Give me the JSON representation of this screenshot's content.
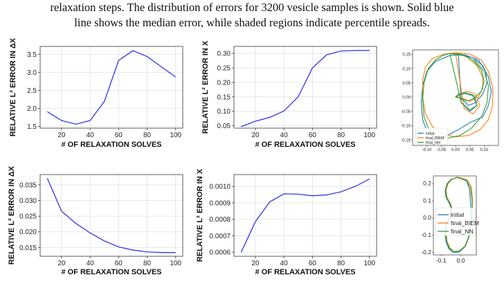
{
  "caption": {
    "lines": [
      "relaxation steps. The distribution of errors for 3200 vesicle samples is shown. Solid blue",
      "line shows the median error, while shaded regions indicate percentile spreads."
    ]
  },
  "colors": {
    "median": "#2525e6",
    "initial": "#1f77b4",
    "final_BIEM": "#ff7f0e",
    "final_NN": "#2ca02c"
  },
  "chart_data": [
    {
      "type": "line",
      "xlabel": "# OF RELAXATION SOLVES",
      "ylabel": "RELATIVE L² ERROR IN ΔX",
      "x": [
        10,
        20,
        30,
        40,
        50,
        60,
        70,
        80,
        100
      ],
      "values": [
        1.91,
        1.66,
        1.56,
        1.66,
        2.19,
        3.33,
        3.6,
        3.44,
        2.87
      ],
      "xlim": [
        5,
        105
      ],
      "ylim": [
        1.45,
        3.72
      ],
      "xticks": [
        "20",
        "40",
        "60",
        "80",
        "100"
      ],
      "xtick_vals": [
        20,
        40,
        60,
        80,
        100
      ],
      "yticks": [
        "1.5",
        "2.0",
        "2.5",
        "3.0",
        "3.5"
      ],
      "ytick_vals": [
        1.5,
        2.0,
        2.5,
        3.0,
        3.5
      ]
    },
    {
      "type": "line",
      "xlabel": "# OF RELAXATION SOLVES",
      "ylabel": "RELATIVE L² ERROR IN X",
      "x": [
        10,
        20,
        30,
        40,
        50,
        60,
        70,
        80,
        90,
        100
      ],
      "values": [
        0.047,
        0.066,
        0.079,
        0.101,
        0.15,
        0.25,
        0.295,
        0.308,
        0.31,
        0.31
      ],
      "xlim": [
        5,
        105
      ],
      "ylim": [
        0.042,
        0.324
      ],
      "xticks": [
        "20",
        "40",
        "60",
        "80",
        "100"
      ],
      "xtick_vals": [
        20,
        40,
        60,
        80,
        100
      ],
      "yticks": [
        "0.05",
        "0.10",
        "0.15",
        "0.20",
        "0.25",
        "0.30"
      ],
      "ytick_vals": [
        0.05,
        0.1,
        0.15,
        0.2,
        0.25,
        0.3
      ]
    },
    {
      "type": "line",
      "xlabel": "# OF RELAXATION SOLVES",
      "ylabel": "RELATIVE L² ERROR IN ΔX",
      "x": [
        10,
        20,
        30,
        40,
        50,
        60,
        70,
        80,
        90,
        100
      ],
      "values": [
        0.0371,
        0.0266,
        0.0227,
        0.0197,
        0.0171,
        0.0152,
        0.0142,
        0.0136,
        0.0134,
        0.0134
      ],
      "xlim": [
        5,
        105
      ],
      "ylim": [
        0.0122,
        0.0383
      ],
      "xticks": [
        "20",
        "40",
        "60",
        "80",
        "100"
      ],
      "xtick_vals": [
        20,
        40,
        60,
        80,
        100
      ],
      "yticks": [
        "0.015",
        "0.020",
        "0.025",
        "0.030",
        "0.035"
      ],
      "ytick_vals": [
        0.015,
        0.02,
        0.025,
        0.03,
        0.035
      ]
    },
    {
      "type": "line",
      "xlabel": "# OF RELAXATION SOLVES",
      "ylabel": "RELATIVE L² ERROR IN X",
      "x": [
        10,
        20,
        30,
        40,
        50,
        60,
        70,
        80,
        90,
        100
      ],
      "values": [
        0.0006,
        0.000785,
        0.000905,
        0.000955,
        0.000953,
        0.000943,
        0.000948,
        0.000967,
        0.001,
        0.001045
      ],
      "xlim": [
        5,
        105
      ],
      "ylim": [
        0.000575,
        0.001072
      ],
      "xticks": [
        "20",
        "40",
        "60",
        "80",
        "100"
      ],
      "xtick_vals": [
        20,
        40,
        60,
        80,
        100
      ],
      "yticks": [
        "0.0006",
        "0.0007",
        "0.0008",
        "0.0009",
        "0.0010"
      ],
      "ytick_vals": [
        0.0006,
        0.0007,
        0.0008,
        0.0009,
        0.001
      ]
    },
    {
      "type": "line",
      "legend": [
        "initial",
        "final_BIEM",
        "final_NN"
      ],
      "legend_position": "lower-left",
      "xlim": [
        -0.15,
        0.15
      ],
      "ylim": [
        -0.17,
        0.165
      ],
      "xticks": [
        "-0.10",
        "-0.05",
        "0.00",
        "0.05",
        "0.10"
      ],
      "xtick_vals": [
        -0.1,
        -0.05,
        0.0,
        0.05,
        0.1
      ],
      "yticks": [
        "0.15",
        "0.10",
        "0.05",
        "0.00",
        "-0.05",
        "-0.10",
        "-0.15"
      ],
      "ytick_vals": [
        0.15,
        0.1,
        0.05,
        0.0,
        -0.05,
        -0.1,
        -0.15
      ],
      "series": [
        {
          "name": "initial",
          "x": [
            0.01,
            0.06,
            0.095,
            0.115,
            0.125,
            0.115,
            0.095,
            0.05,
            0.01,
            -0.04,
            -0.075,
            -0.1,
            -0.115,
            -0.12,
            -0.115,
            -0.1,
            -0.07,
            -0.02,
            0.03,
            0.08,
            0.105,
            0.11,
            0.095,
            0.07,
            0.045,
            0.02,
            0.0,
            0.01,
            0.03,
            0.06,
            0.075,
            0.05,
            0.02,
            0.01
          ],
          "y": [
            0.148,
            0.138,
            0.11,
            0.07,
            0.02,
            -0.03,
            -0.07,
            -0.09,
            -0.115,
            -0.14,
            -0.14,
            -0.12,
            -0.08,
            -0.02,
            0.04,
            0.09,
            0.125,
            0.145,
            0.148,
            0.13,
            0.09,
            0.05,
            0.01,
            -0.02,
            -0.03,
            -0.005,
            0.0,
            0.005,
            0.012,
            0.005,
            -0.03,
            -0.05,
            -0.02,
            0.148
          ]
        },
        {
          "name": "final_BIEM",
          "x": [
            0.0,
            0.05,
            0.09,
            0.115,
            0.13,
            0.13,
            0.115,
            0.085,
            0.045,
            0.0,
            -0.045,
            -0.08,
            -0.105,
            -0.115,
            -0.115,
            -0.105,
            -0.08,
            -0.04,
            0.0,
            0.04,
            0.075,
            0.095,
            0.095,
            0.08,
            0.05,
            0.025,
            0.005,
            0.015,
            0.04,
            0.07,
            0.085,
            0.06,
            0.03,
            0.0
          ],
          "y": [
            0.155,
            0.15,
            0.13,
            0.09,
            0.035,
            -0.03,
            -0.08,
            -0.115,
            -0.135,
            -0.14,
            -0.13,
            -0.105,
            -0.06,
            0.0,
            0.06,
            0.105,
            0.135,
            0.15,
            0.155,
            0.14,
            0.11,
            0.07,
            0.03,
            0.0,
            -0.015,
            -0.005,
            0.0,
            0.01,
            0.02,
            0.01,
            -0.03,
            -0.06,
            -0.04,
            0.155
          ]
        },
        {
          "name": "final_NN",
          "x": [
            -0.02,
            0.03,
            0.07,
            0.1,
            0.115,
            0.11,
            0.09,
            0.055,
            0.015,
            -0.03,
            -0.07,
            -0.095,
            -0.11,
            -0.115,
            -0.11,
            -0.095,
            -0.07,
            -0.045,
            -0.02,
            0.02,
            0.06,
            0.09,
            0.1,
            0.09,
            0.065,
            0.04,
            0.02,
            0.0,
            0.01,
            0.035,
            0.065,
            0.075,
            0.05,
            0.02,
            -0.02
          ],
          "y": [
            0.152,
            0.145,
            0.125,
            0.09,
            0.04,
            -0.02,
            -0.07,
            -0.11,
            -0.135,
            -0.145,
            -0.135,
            -0.11,
            -0.07,
            -0.01,
            0.05,
            0.1,
            0.13,
            0.145,
            0.152,
            0.15,
            0.13,
            0.095,
            0.055,
            0.02,
            -0.005,
            -0.015,
            -0.005,
            0.0,
            0.01,
            0.015,
            0.005,
            -0.03,
            -0.045,
            -0.02,
            0.152
          ]
        }
      ]
    },
    {
      "type": "line",
      "legend": [
        "initial",
        "final_BIEM",
        "final_NN"
      ],
      "legend_position": "center",
      "xlim": [
        -0.14,
        0.08
      ],
      "ylim": [
        -0.215,
        0.245
      ],
      "xticks": [
        "-0.1",
        "0.0"
      ],
      "xtick_vals": [
        -0.1,
        0.0
      ],
      "yticks": [
        "0.2",
        "0.1",
        "0.0",
        "-0.1",
        "-0.2"
      ],
      "ytick_vals": [
        0.2,
        0.1,
        0.0,
        -0.1,
        -0.2
      ],
      "series": [
        {
          "name": "initial",
          "x": [
            0.0,
            0.03,
            0.045,
            0.05,
            0.055,
            0.05,
            0.04,
            0.02,
            -0.01,
            -0.04,
            -0.06,
            -0.075,
            -0.08,
            -0.075,
            -0.06,
            -0.05,
            -0.05,
            -0.06,
            -0.075,
            -0.08,
            -0.07,
            -0.05,
            -0.02,
            0.0
          ],
          "y": [
            0.23,
            0.215,
            0.17,
            0.1,
            0.03,
            -0.04,
            -0.11,
            -0.17,
            -0.2,
            -0.2,
            -0.18,
            -0.14,
            -0.09,
            -0.04,
            0.0,
            0.03,
            0.06,
            0.09,
            0.12,
            0.16,
            0.2,
            0.225,
            0.235,
            0.23
          ]
        },
        {
          "name": "final_BIEM",
          "x": [
            0.0,
            0.035,
            0.055,
            0.06,
            0.06,
            0.055,
            0.045,
            0.025,
            -0.005,
            -0.035,
            -0.055,
            -0.07,
            -0.075,
            -0.07,
            -0.055,
            -0.045,
            -0.045,
            -0.055,
            -0.07,
            -0.075,
            -0.065,
            -0.045,
            -0.02,
            0.0
          ],
          "y": [
            0.235,
            0.22,
            0.18,
            0.11,
            0.04,
            -0.03,
            -0.1,
            -0.16,
            -0.19,
            -0.195,
            -0.175,
            -0.135,
            -0.085,
            -0.035,
            0.0,
            0.03,
            0.06,
            0.09,
            0.12,
            0.16,
            0.2,
            0.225,
            0.238,
            0.235
          ]
        },
        {
          "name": "final_NN",
          "x": [
            -0.005,
            0.03,
            0.05,
            0.058,
            0.06,
            0.055,
            0.045,
            0.025,
            -0.005,
            -0.035,
            -0.058,
            -0.072,
            -0.078,
            -0.072,
            -0.058,
            -0.047,
            -0.047,
            -0.058,
            -0.072,
            -0.078,
            -0.068,
            -0.048,
            -0.022,
            -0.005
          ],
          "y": [
            0.232,
            0.218,
            0.178,
            0.108,
            0.038,
            -0.032,
            -0.102,
            -0.162,
            -0.192,
            -0.196,
            -0.176,
            -0.136,
            -0.086,
            -0.036,
            0.0,
            0.03,
            0.06,
            0.09,
            0.12,
            0.16,
            0.2,
            0.224,
            0.236,
            0.232
          ]
        }
      ]
    }
  ]
}
